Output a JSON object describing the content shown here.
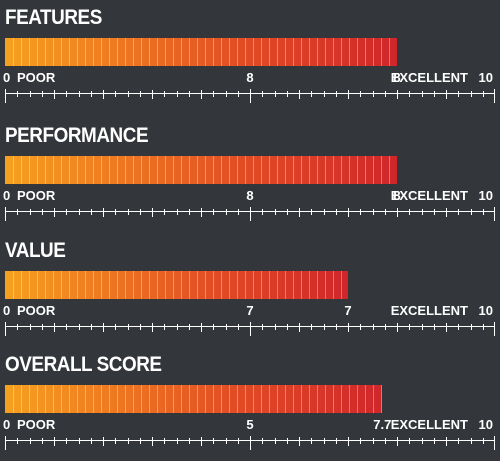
{
  "chart_data": [
    {
      "type": "bar",
      "title": "FEATURES",
      "value": 8,
      "value_label": "8",
      "midpoint_label": "8",
      "min_label": "0",
      "poor_label": "POOR",
      "excellent_label": "EXCELLENT",
      "max_label": "10",
      "xlim": [
        0,
        10
      ]
    },
    {
      "type": "bar",
      "title": "PERFORMANCE",
      "value": 8,
      "value_label": "8",
      "midpoint_label": "8",
      "min_label": "0",
      "poor_label": "POOR",
      "excellent_label": "EXCELLENT",
      "max_label": "10",
      "xlim": [
        0,
        10
      ]
    },
    {
      "type": "bar",
      "title": "VALUE",
      "value": 7,
      "value_label": "7",
      "midpoint_label": "7",
      "min_label": "0",
      "poor_label": "POOR",
      "excellent_label": "EXCELLENT",
      "max_label": "10",
      "xlim": [
        0,
        10
      ]
    },
    {
      "type": "bar",
      "title": "OVERALL SCORE",
      "value": 7.7,
      "value_label": "7.7",
      "midpoint_label": "5",
      "min_label": "0",
      "poor_label": "POOR",
      "excellent_label": "EXCELLENT",
      "max_label": "10",
      "xlim": [
        0,
        10
      ]
    }
  ],
  "colors": {
    "background": "#33363a",
    "bar_start": "#f6a11f",
    "bar_end": "#d0262a",
    "text": "#ffffff"
  }
}
